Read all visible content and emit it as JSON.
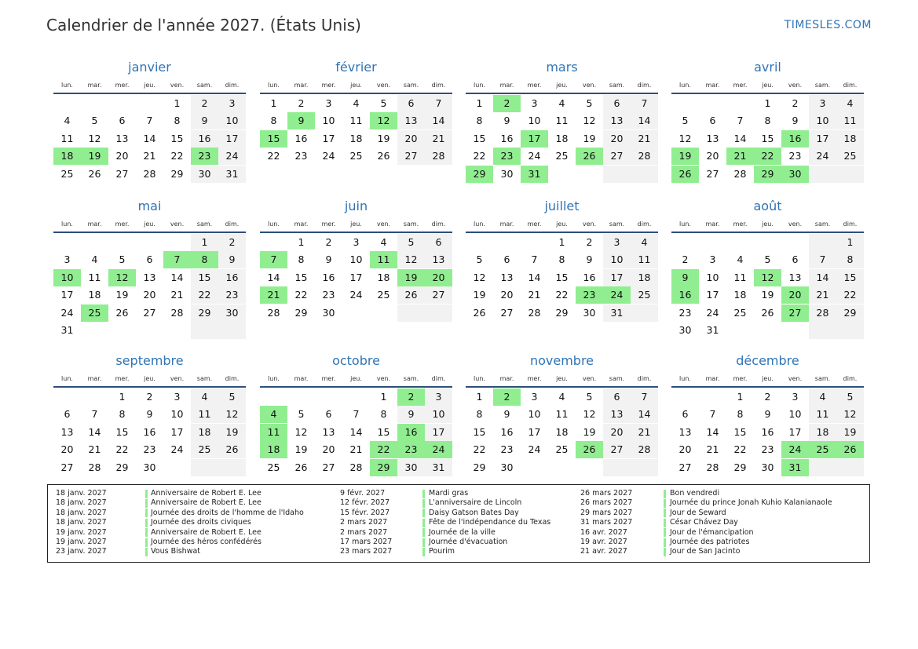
{
  "title": "Calendrier de l'année 2027. (États Unis)",
  "site": "TIMESLES.COM",
  "colors": {
    "accent": "#2f74b5",
    "holiday": "#90ee90",
    "weekend": "#f2f2f2",
    "rule": "#2c4f7c"
  },
  "weekdays": [
    "lun.",
    "mar.",
    "mer.",
    "jeu.",
    "ven.",
    "sam.",
    "dim."
  ],
  "months": [
    {
      "name": "janvier",
      "offset": 4,
      "days": 31,
      "holidays": [
        18,
        19,
        23
      ]
    },
    {
      "name": "février",
      "offset": 0,
      "days": 28,
      "holidays": [
        9,
        12,
        15
      ]
    },
    {
      "name": "mars",
      "offset": 0,
      "days": 31,
      "holidays": [
        2,
        17,
        23,
        26,
        29,
        31
      ]
    },
    {
      "name": "avril",
      "offset": 3,
      "days": 30,
      "holidays": [
        16,
        19,
        21,
        22,
        26,
        29,
        30
      ]
    },
    {
      "name": "mai",
      "offset": 5,
      "days": 31,
      "holidays": [
        7,
        8,
        10,
        12,
        25
      ]
    },
    {
      "name": "juin",
      "offset": 1,
      "days": 30,
      "holidays": [
        7,
        11,
        19,
        20,
        21
      ]
    },
    {
      "name": "juillet",
      "offset": 3,
      "days": 31,
      "holidays": [
        23,
        24
      ]
    },
    {
      "name": "août",
      "offset": 6,
      "days": 31,
      "holidays": [
        9,
        12,
        16,
        20,
        27
      ]
    },
    {
      "name": "septembre",
      "offset": 2,
      "days": 30,
      "holidays": []
    },
    {
      "name": "octobre",
      "offset": 4,
      "days": 31,
      "holidays": [
        2,
        4,
        11,
        16,
        18,
        22,
        23,
        24,
        29
      ]
    },
    {
      "name": "novembre",
      "offset": 0,
      "days": 30,
      "holidays": [
        2,
        26
      ]
    },
    {
      "name": "décembre",
      "offset": 2,
      "days": 31,
      "holidays": [
        24,
        25,
        26,
        31
      ]
    }
  ],
  "legend": [
    [
      {
        "date": "18 janv. 2027",
        "name": "Anniversaire de Robert E. Lee"
      },
      {
        "date": "18 janv. 2027",
        "name": "Anniversaire de Robert E. Lee"
      },
      {
        "date": "18 janv. 2027",
        "name": "Journée des droits de l'homme de l'Idaho"
      },
      {
        "date": "18 janv. 2027",
        "name": "Journée des droits civiques"
      },
      {
        "date": "19 janv. 2027",
        "name": "Anniversaire de Robert E. Lee"
      },
      {
        "date": "19 janv. 2027",
        "name": "Journée des héros confédérés"
      },
      {
        "date": "23 janv. 2027",
        "name": "Vous Bishwat"
      }
    ],
    [
      {
        "date": "9 févr. 2027",
        "name": "Mardi gras"
      },
      {
        "date": "12 févr. 2027",
        "name": "L'anniversaire de Lincoln"
      },
      {
        "date": "15 févr. 2027",
        "name": "Daisy Gatson Bates Day"
      },
      {
        "date": "2 mars 2027",
        "name": "Fête de l'indépendance du Texas"
      },
      {
        "date": "2 mars 2027",
        "name": "Journée de la ville"
      },
      {
        "date": "17 mars 2027",
        "name": "Journée d'évacuation"
      },
      {
        "date": "23 mars 2027",
        "name": "Pourim"
      }
    ],
    [
      {
        "date": "26 mars 2027",
        "name": "Bon vendredi"
      },
      {
        "date": "26 mars 2027",
        "name": "Journée du prince Jonah Kuhio Kalanianaole"
      },
      {
        "date": "29 mars 2027",
        "name": "Jour de Seward"
      },
      {
        "date": "31 mars 2027",
        "name": "César Chávez Day"
      },
      {
        "date": "16 avr. 2027",
        "name": "Jour de l'émancipation"
      },
      {
        "date": "19 avr. 2027",
        "name": "Journée des patriotes"
      },
      {
        "date": "21 avr. 2027",
        "name": "Jour de San Jacinto"
      }
    ]
  ]
}
